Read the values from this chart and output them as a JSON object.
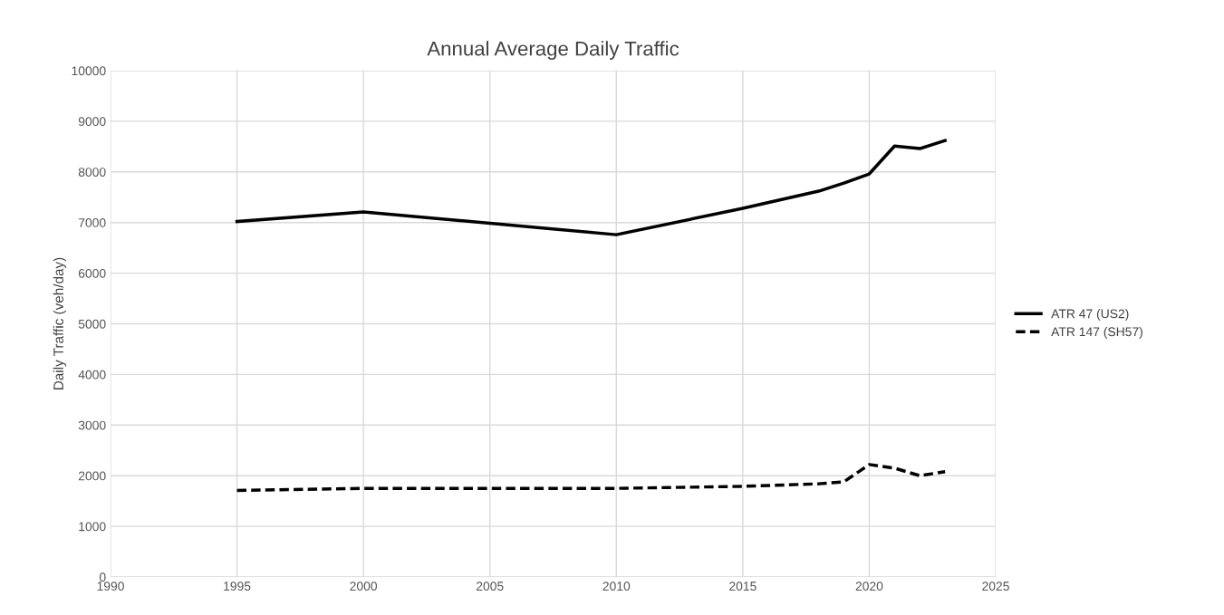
{
  "chart_data": {
    "type": "line",
    "title": "Annual Average Daily Traffic",
    "ylabel": "Daily Traffic (veh/day)",
    "x": [
      1995,
      2000,
      2010,
      2015,
      2018,
      2019,
      2020,
      2021,
      2022,
      2023
    ],
    "series": [
      {
        "name": "ATR 47 (US2)",
        "color": "#000000",
        "line_style": "solid",
        "values": [
          7020,
          7210,
          6760,
          7280,
          7620,
          7780,
          7960,
          8510,
          8460,
          8620
        ]
      },
      {
        "name": "ATR 147 (SH57)",
        "color": "#000000",
        "line_style": "dashed",
        "values": [
          1710,
          1750,
          1750,
          1790,
          1840,
          1880,
          2220,
          2150,
          2000,
          2080
        ]
      }
    ],
    "xlim": [
      1990,
      2025
    ],
    "xticks": [
      1990,
      1995,
      2000,
      2005,
      2010,
      2015,
      2020,
      2025
    ],
    "ylim": [
      0,
      10000
    ],
    "yticks": [
      0,
      1000,
      2000,
      3000,
      4000,
      5000,
      6000,
      7000,
      8000,
      9000,
      10000
    ],
    "grid": true,
    "legend": "right",
    "marker": "none"
  }
}
